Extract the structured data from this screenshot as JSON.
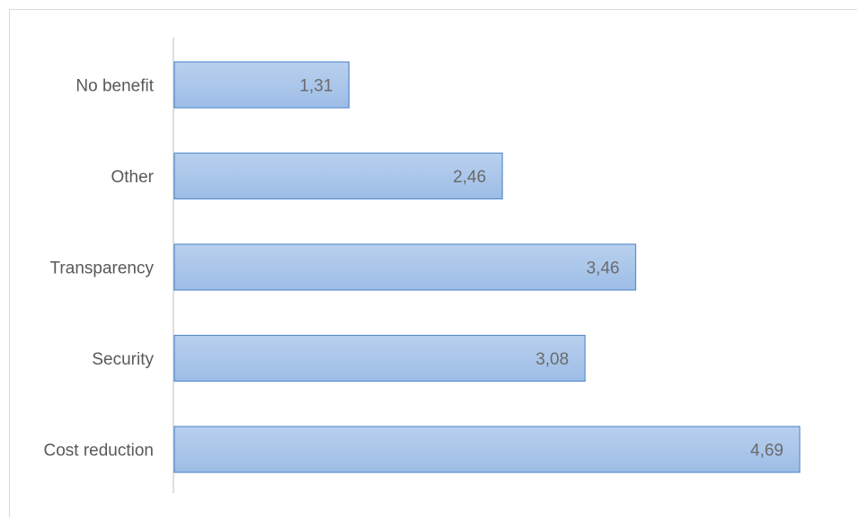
{
  "chart_data": {
    "type": "bar",
    "orientation": "horizontal",
    "categories": [
      "No benefit",
      "Other",
      "Transparency",
      "Security",
      "Cost reduction"
    ],
    "values": [
      1.31,
      2.46,
      3.46,
      3.08,
      4.69
    ],
    "value_labels": [
      "1,31",
      "2,46",
      "3,46",
      "3,08",
      "4,69"
    ],
    "title": "",
    "xlabel": "",
    "ylabel": "",
    "xlim": [
      0,
      5
    ],
    "grid": false,
    "legend": "none",
    "bar_fill_top": "#b9d0ee",
    "bar_fill_bottom": "#9dbde6",
    "bar_stroke": "#5b8fcf"
  }
}
